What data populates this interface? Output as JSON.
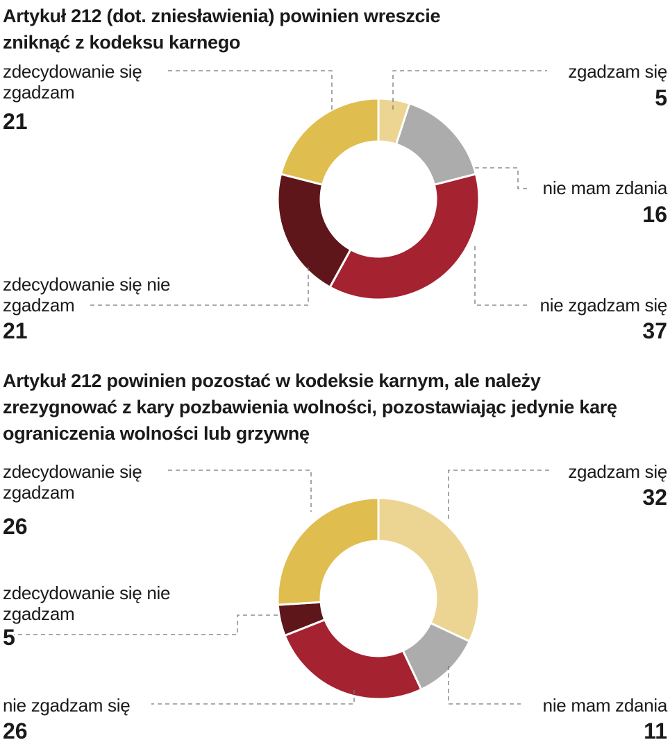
{
  "chart_data": [
    {
      "type": "pie",
      "variant": "donut",
      "title": "Artykuł 212 (dot. zniesławienia) powinien wreszcie zniknąć z kodeksu karnego",
      "categories": [
        "zgadzam się",
        "nie mam zdania",
        "nie zgadzam się",
        "zdecydowanie się nie zgadzam",
        "zdecydowanie się zgadzam"
      ],
      "values": [
        5,
        16,
        37,
        21,
        21
      ],
      "labels": {
        "zgadzam_sie": "zgadzam się",
        "nie_mam_zdania": "nie mam zdania",
        "nie_zgadzam_sie": "nie zgadzam się",
        "zdecydowanie_nie": "zdecydowanie się nie zgadzam",
        "zdecydowanie_tak": "zdecydowanie się zgadzam"
      },
      "value_labels": {
        "zgadzam_sie": "5",
        "nie_mam_zdania": "16",
        "nie_zgadzam_sie": "37",
        "zdecydowanie_nie": "21",
        "zdecydowanie_tak": "21"
      }
    },
    {
      "type": "pie",
      "variant": "donut",
      "title": "Artykuł 212 powinien pozostać w kodeksie karnym, ale należy zrezygnować z kary pozbawienia wolności, pozostawiając jedynie karę ograniczenia wolności lub grzywnę",
      "categories": [
        "zgadzam się",
        "nie mam zdania",
        "nie zgadzam się",
        "zdecydowanie się nie zgadzam",
        "zdecydowanie się zgadzam"
      ],
      "values": [
        32,
        11,
        26,
        5,
        26
      ],
      "labels": {
        "zgadzam_sie": "zgadzam się",
        "nie_mam_zdania": "nie mam zdania",
        "nie_zgadzam_sie": "nie zgadzam się",
        "zdecydowanie_nie": "zdecydowanie się nie zgadzam",
        "zdecydowanie_tak": "zdecydowanie się zgadzam"
      },
      "value_labels": {
        "zgadzam_sie": "32",
        "nie_mam_zdania": "11",
        "nie_zgadzam_sie": "26",
        "zdecydowanie_nie": "5",
        "zdecydowanie_tak": "26"
      }
    }
  ],
  "colors": [
    "#ecd492",
    "#acacac",
    "#a52231",
    "#5e161a",
    "#dfbd4f"
  ]
}
